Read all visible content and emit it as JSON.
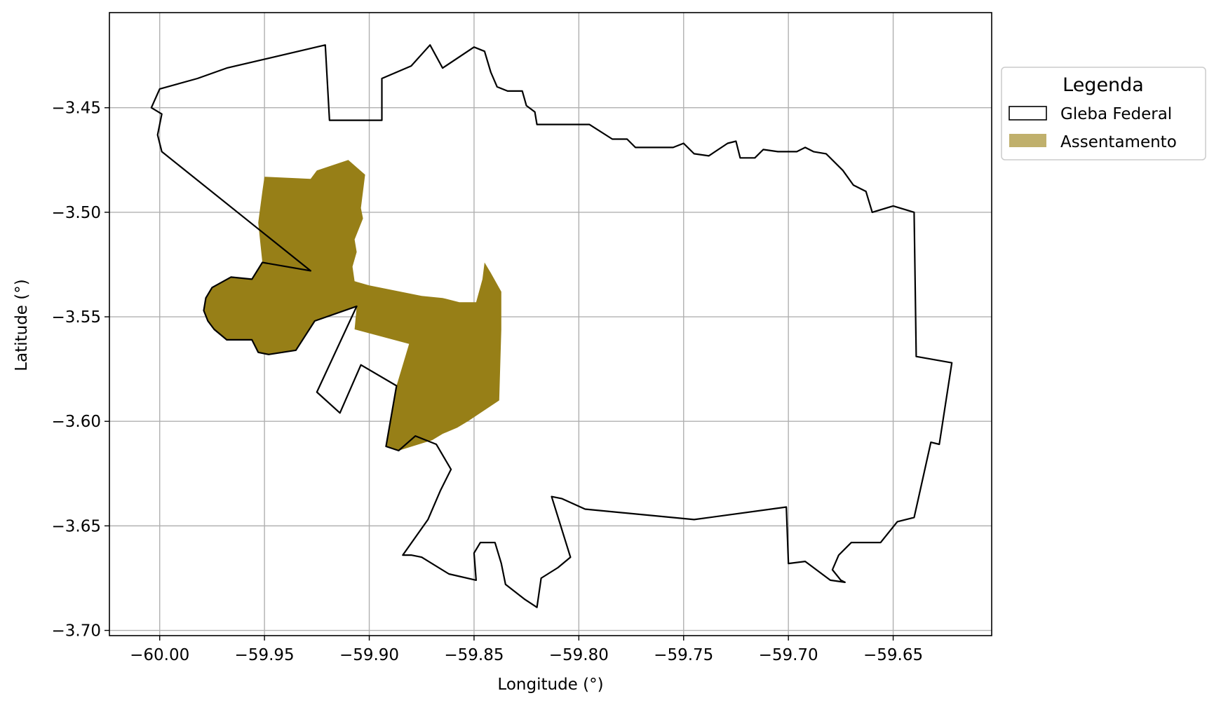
{
  "chart_data": {
    "type": "map",
    "xlabel": "Longitude (°)",
    "ylabel": "Latitude (°)",
    "xlim": [
      -60.024,
      -59.603
    ],
    "ylim": [
      -3.7025,
      -3.4045
    ],
    "x_ticks": [
      -60.0,
      -59.95,
      -59.9,
      -59.85,
      -59.8,
      -59.75,
      -59.7,
      -59.65
    ],
    "x_tick_labels": [
      "−60.00",
      "−59.95",
      "−59.90",
      "−59.85",
      "−59.80",
      "−59.75",
      "−59.70",
      "−59.65"
    ],
    "y_ticks": [
      -3.45,
      -3.5,
      -3.55,
      -3.6,
      -3.65,
      -3.7
    ],
    "y_tick_labels": [
      "−3.45",
      "−3.50",
      "−3.55",
      "−3.60",
      "−3.65",
      "−3.70"
    ],
    "grid": true,
    "legend": {
      "title": "Legenda",
      "placement": "upper right, outside axes",
      "entries": [
        {
          "label": "Gleba Federal",
          "style": "outline",
          "edge_color": "#000000",
          "fill_color": "none"
        },
        {
          "label": "Assentamento",
          "style": "filled",
          "fill_color": "#c0b06c"
        }
      ]
    },
    "layers": [
      {
        "name": "Assentamento",
        "fill_color": "#977f17",
        "polygons": [
          [
            [
              -59.95,
              -3.483
            ],
            [
              -59.928,
              -3.484
            ],
            [
              -59.925,
              -3.48
            ],
            [
              -59.91,
              -3.475
            ],
            [
              -59.902,
              -3.482
            ],
            [
              -59.903,
              -3.49
            ],
            [
              -59.904,
              -3.498
            ],
            [
              -59.903,
              -3.503
            ],
            [
              -59.905,
              -3.508
            ],
            [
              -59.907,
              -3.513
            ],
            [
              -59.906,
              -3.519
            ],
            [
              -59.908,
              -3.526
            ],
            [
              -59.907,
              -3.533
            ],
            [
              -59.9,
              -3.535
            ],
            [
              -59.885,
              -3.538
            ],
            [
              -59.875,
              -3.54
            ],
            [
              -59.865,
              -3.541
            ],
            [
              -59.857,
              -3.543
            ],
            [
              -59.849,
              -3.543
            ],
            [
              -59.846,
              -3.532
            ],
            [
              -59.845,
              -3.524
            ],
            [
              -59.842,
              -3.529
            ],
            [
              -59.837,
              -3.538
            ],
            [
              -59.837,
              -3.556
            ],
            [
              -59.838,
              -3.59
            ],
            [
              -59.853,
              -3.6
            ],
            [
              -59.858,
              -3.603
            ],
            [
              -59.865,
              -3.606
            ],
            [
              -59.87,
              -3.609
            ],
            [
              -59.886,
              -3.614
            ],
            [
              -59.892,
              -3.612
            ],
            [
              -59.887,
              -3.583
            ],
            [
              -59.881,
              -3.563
            ],
            [
              -59.907,
              -3.556
            ],
            [
              -59.906,
              -3.545
            ],
            [
              -59.926,
              -3.552
            ],
            [
              -59.935,
              -3.566
            ],
            [
              -59.948,
              -3.568
            ],
            [
              -59.953,
              -3.567
            ],
            [
              -59.956,
              -3.561
            ],
            [
              -59.968,
              -3.561
            ],
            [
              -59.974,
              -3.556
            ],
            [
              -59.977,
              -3.552
            ],
            [
              -59.979,
              -3.547
            ],
            [
              -59.978,
              -3.541
            ],
            [
              -59.975,
              -3.536
            ],
            [
              -59.966,
              -3.531
            ],
            [
              -59.956,
              -3.532
            ],
            [
              -59.951,
              -3.524
            ],
            [
              -59.953,
              -3.505
            ],
            [
              -59.951,
              -3.49
            ]
          ]
        ]
      },
      {
        "name": "Gleba Federal",
        "edge_color": "#000000",
        "fill_color": "none",
        "polygons": [
          [
            [
              -60.004,
              -3.45
            ],
            [
              -60.0,
              -3.441
            ],
            [
              -59.982,
              -3.436
            ],
            [
              -59.968,
              -3.431
            ],
            [
              -59.921,
              -3.42
            ],
            [
              -59.919,
              -3.456
            ],
            [
              -59.894,
              -3.456
            ],
            [
              -59.894,
              -3.436
            ],
            [
              -59.88,
              -3.43
            ],
            [
              -59.871,
              -3.42
            ],
            [
              -59.865,
              -3.431
            ],
            [
              -59.85,
              -3.421
            ],
            [
              -59.845,
              -3.423
            ],
            [
              -59.842,
              -3.433
            ],
            [
              -59.839,
              -3.44
            ],
            [
              -59.834,
              -3.442
            ],
            [
              -59.827,
              -3.442
            ],
            [
              -59.825,
              -3.449
            ],
            [
              -59.821,
              -3.452
            ],
            [
              -59.82,
              -3.458
            ],
            [
              -59.795,
              -3.458
            ],
            [
              -59.784,
              -3.465
            ],
            [
              -59.777,
              -3.465
            ],
            [
              -59.773,
              -3.469
            ],
            [
              -59.765,
              -3.469
            ],
            [
              -59.755,
              -3.469
            ],
            [
              -59.75,
              -3.467
            ],
            [
              -59.745,
              -3.472
            ],
            [
              -59.738,
              -3.473
            ],
            [
              -59.729,
              -3.467
            ],
            [
              -59.725,
              -3.466
            ],
            [
              -59.723,
              -3.474
            ],
            [
              -59.716,
              -3.474
            ],
            [
              -59.712,
              -3.47
            ],
            [
              -59.705,
              -3.471
            ],
            [
              -59.696,
              -3.471
            ],
            [
              -59.692,
              -3.469
            ],
            [
              -59.688,
              -3.471
            ],
            [
              -59.682,
              -3.472
            ],
            [
              -59.674,
              -3.48
            ],
            [
              -59.669,
              -3.487
            ],
            [
              -59.663,
              -3.49
            ],
            [
              -59.66,
              -3.5
            ],
            [
              -59.65,
              -3.497
            ],
            [
              -59.64,
              -3.5
            ],
            [
              -59.639,
              -3.569
            ],
            [
              -59.622,
              -3.572
            ],
            [
              -59.628,
              -3.611
            ],
            [
              -59.632,
              -3.61
            ],
            [
              -59.638,
              -3.637
            ],
            [
              -59.64,
              -3.646
            ],
            [
              -59.648,
              -3.648
            ],
            [
              -59.656,
              -3.658
            ],
            [
              -59.67,
              -3.658
            ],
            [
              -59.676,
              -3.664
            ],
            [
              -59.679,
              -3.671
            ],
            [
              -59.675,
              -3.676
            ],
            [
              -59.673,
              -3.677
            ],
            [
              -59.68,
              -3.676
            ],
            [
              -59.692,
              -3.667
            ],
            [
              -59.7,
              -3.668
            ],
            [
              -59.701,
              -3.641
            ],
            [
              -59.745,
              -3.647
            ],
            [
              -59.797,
              -3.642
            ],
            [
              -59.808,
              -3.637
            ],
            [
              -59.813,
              -3.636
            ],
            [
              -59.804,
              -3.665
            ],
            [
              -59.81,
              -3.67
            ],
            [
              -59.818,
              -3.675
            ],
            [
              -59.82,
              -3.689
            ],
            [
              -59.826,
              -3.685
            ],
            [
              -59.835,
              -3.678
            ],
            [
              -59.837,
              -3.668
            ],
            [
              -59.84,
              -3.658
            ],
            [
              -59.847,
              -3.658
            ],
            [
              -59.85,
              -3.663
            ],
            [
              -59.849,
              -3.676
            ],
            [
              -59.862,
              -3.673
            ],
            [
              -59.875,
              -3.665
            ],
            [
              -59.88,
              -3.664
            ],
            [
              -59.884,
              -3.664
            ],
            [
              -59.872,
              -3.647
            ],
            [
              -59.866,
              -3.633
            ],
            [
              -59.861,
              -3.623
            ],
            [
              -59.868,
              -3.611
            ],
            [
              -59.878,
              -3.607
            ],
            [
              -59.886,
              -3.614
            ],
            [
              -59.892,
              -3.612
            ],
            [
              -59.887,
              -3.583
            ],
            [
              -59.904,
              -3.573
            ],
            [
              -59.914,
              -3.596
            ],
            [
              -59.925,
              -3.586
            ],
            [
              -59.906,
              -3.545
            ],
            [
              -59.926,
              -3.552
            ],
            [
              -59.935,
              -3.566
            ],
            [
              -59.948,
              -3.568
            ],
            [
              -59.953,
              -3.567
            ],
            [
              -59.956,
              -3.561
            ],
            [
              -59.968,
              -3.561
            ],
            [
              -59.974,
              -3.556
            ],
            [
              -59.977,
              -3.552
            ],
            [
              -59.979,
              -3.547
            ],
            [
              -59.978,
              -3.541
            ],
            [
              -59.975,
              -3.536
            ],
            [
              -59.966,
              -3.531
            ],
            [
              -59.956,
              -3.532
            ],
            [
              -59.951,
              -3.524
            ],
            [
              -59.928,
              -3.528
            ],
            [
              -59.999,
              -3.471
            ],
            [
              -60.001,
              -3.463
            ],
            [
              -59.999,
              -3.453
            ]
          ]
        ]
      }
    ]
  }
}
